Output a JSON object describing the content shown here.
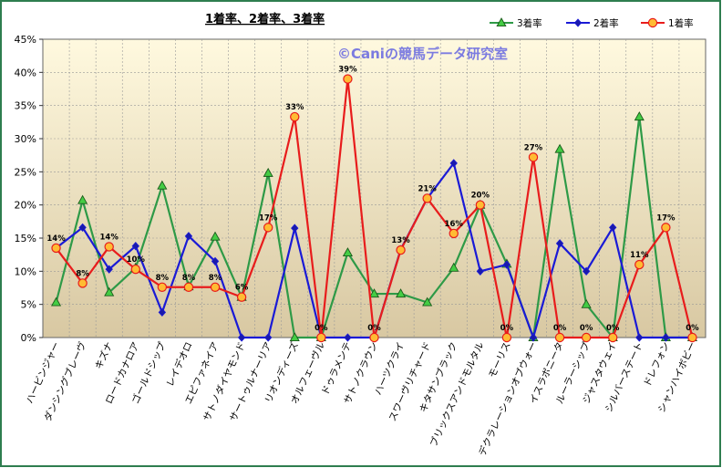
{
  "chart_data": {
    "type": "line",
    "title": "1着率、2着率、3着率",
    "watermark": "©Caniの競馬データ研究室",
    "ylim": [
      0,
      45
    ],
    "yticks": [
      "0%",
      "5%",
      "10%",
      "15%",
      "20%",
      "25%",
      "30%",
      "35%",
      "40%",
      "45%"
    ],
    "grid": true,
    "legend_position": "top-right",
    "categories": [
      "ハービンジャー",
      "ダンシングブレーヴ",
      "キズナ",
      "ロードカナロア",
      "ゴールドシップ",
      "レイデオロ",
      "エピファネイア",
      "サトノダイヤモンド",
      "サートゥルナーリア",
      "リオンディーズ",
      "オルフェーヴル",
      "ドゥラメンテ",
      "サトノクラウン",
      "ハーツクライ",
      "スワーヴリチャード",
      "キタサンブラック",
      "ブリックスアンドモルタル",
      "モーリス",
      "デクラレーションオブウォー",
      "イスラボニータ",
      "ルーラーシップ",
      "ジャスタウェイ",
      "シルバーステート",
      "ドレフォン",
      "シャンハイボビー"
    ],
    "series": [
      {
        "name": "3着率",
        "color": "#2e9a47",
        "marker": "triangle",
        "values": [
          5.3,
          20.7,
          6.8,
          10.5,
          22.9,
          7.7,
          15.2,
          6.1,
          24.8,
          0,
          0,
          12.8,
          6.6,
          6.6,
          5.3,
          10.5,
          20.0,
          11.1,
          0,
          28.4,
          5.0,
          0,
          33.3,
          0,
          0
        ]
      },
      {
        "name": "2着率",
        "color": "#1a1ad6",
        "marker": "diamond",
        "values": [
          13.5,
          16.6,
          10.3,
          13.8,
          3.8,
          15.3,
          11.5,
          0,
          0,
          16.5,
          0,
          0,
          0,
          13.3,
          21.0,
          26.3,
          10.0,
          11.0,
          0,
          14.2,
          10.0,
          16.6,
          0,
          0,
          0
        ]
      },
      {
        "name": "1着率",
        "color": "#e81c1c",
        "marker": "circle",
        "values": [
          13.5,
          8.2,
          13.7,
          10.3,
          7.6,
          7.6,
          7.6,
          6.1,
          16.6,
          33.3,
          0,
          39.0,
          0,
          13.2,
          21.0,
          15.7,
          20.0,
          0,
          27.2,
          0,
          0,
          0,
          11.0,
          16.6,
          0
        ]
      }
    ],
    "data_labels": [
      "14%",
      "8%",
      "14%",
      "10%",
      "8%",
      "8%",
      "8%",
      "6%",
      "17%",
      "33%",
      "0%",
      "39%",
      "0%",
      "13%",
      "21%",
      "16%",
      "20%",
      "0%",
      "27%",
      "0%",
      "0%",
      "0%",
      "11%",
      "17%",
      "0%"
    ],
    "colors": {
      "frame_border": "#2e7d4f",
      "plot_border": "#666666",
      "gradient_top": "#fff9df",
      "gradient_bottom": "#d8c8a2",
      "gridline": "#999999",
      "watermark": "#7b7be0"
    }
  }
}
